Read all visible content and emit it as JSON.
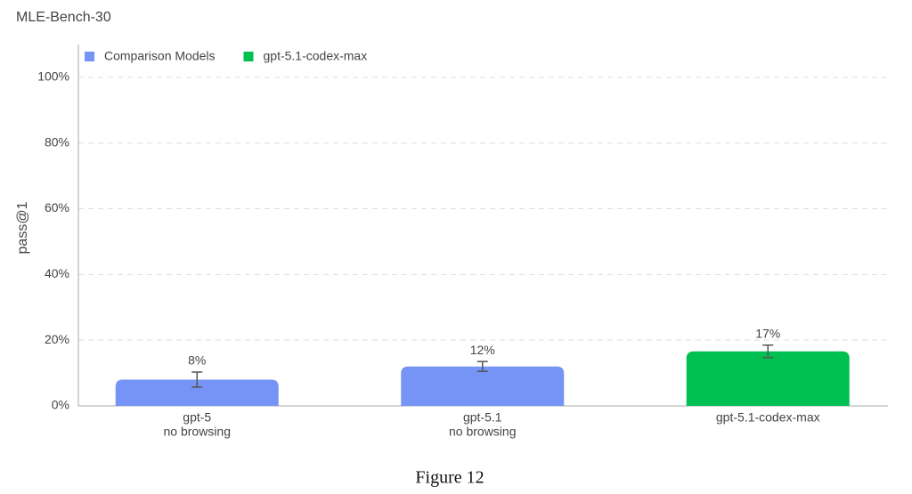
{
  "chart_data": {
    "type": "bar",
    "title": "MLE-Bench-30",
    "ylabel": "pass@1",
    "caption": "Figure 12",
    "categories": [
      [
        "gpt-5",
        "no browsing"
      ],
      [
        "gpt-5.1",
        "no browsing"
      ],
      [
        "gpt-5.1-codex-max"
      ]
    ],
    "series": [
      {
        "name": "Comparison Models",
        "color": "#7594f5",
        "values": [
          8,
          12,
          null
        ],
        "errors": [
          2.3,
          1.5,
          null
        ],
        "value_labels": [
          "8%",
          "12%",
          null
        ]
      },
      {
        "name": "gpt-5.1-codex-max",
        "color": "#00c051",
        "values": [
          null,
          null,
          16.6
        ],
        "errors": [
          null,
          null,
          1.9
        ],
        "value_labels": [
          null,
          null,
          "17%"
        ]
      }
    ],
    "ylim": [
      0,
      110
    ],
    "yticks": [
      {
        "value": 0,
        "label": "0%"
      },
      {
        "value": 20,
        "label": "20%"
      },
      {
        "value": 40,
        "label": "40%"
      },
      {
        "value": 60,
        "label": "60%"
      },
      {
        "value": 80,
        "label": "80%"
      },
      {
        "value": 100,
        "label": "100%"
      }
    ],
    "grid": true
  }
}
